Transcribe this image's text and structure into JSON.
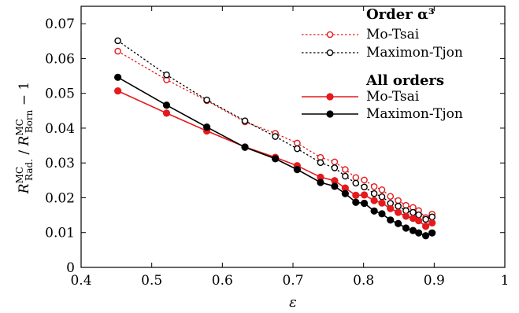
{
  "chart_data": {
    "type": "line",
    "title": "",
    "xlabel": "ε",
    "ylabel": "R^MC_Rad. / R^MC_Born − 1",
    "xlim": [
      0.4,
      1.0
    ],
    "ylim": [
      0,
      0.075
    ],
    "xticks": [
      "0.4",
      "0.5",
      "0.6",
      "0.7",
      "0.8",
      "0.9",
      "1"
    ],
    "yticks": [
      "0",
      "0.01",
      "0.02",
      "0.03",
      "0.04",
      "0.05",
      "0.06",
      "0.07"
    ],
    "grid": false,
    "legend_position": "top-right",
    "legend_groups": [
      "Order α³",
      "All orders"
    ],
    "x": [
      0.452,
      0.521,
      0.578,
      0.632,
      0.675,
      0.706,
      0.739,
      0.759,
      0.774,
      0.789,
      0.801,
      0.815,
      0.826,
      0.838,
      0.849,
      0.86,
      0.87,
      0.878,
      0.888,
      0.897
    ],
    "series": [
      {
        "name": "Mo-Tsai",
        "group": "Order α³",
        "color": "#e41a1c",
        "style": "dashed",
        "marker": "open-circle",
        "values": [
          0.0621,
          0.0539,
          0.0479,
          0.0418,
          0.0385,
          0.0357,
          0.0316,
          0.0303,
          0.0281,
          0.0258,
          0.0251,
          0.0232,
          0.0223,
          0.0204,
          0.0192,
          0.0178,
          0.0172,
          0.0163,
          0.0143,
          0.0153
        ]
      },
      {
        "name": "Maximon-Tjon",
        "group": "Order α³",
        "color": "#000000",
        "style": "dashed",
        "marker": "open-circle",
        "values": [
          0.0651,
          0.0553,
          0.0481,
          0.0421,
          0.0376,
          0.0341,
          0.0301,
          0.0286,
          0.0262,
          0.0242,
          0.0231,
          0.0212,
          0.0203,
          0.0184,
          0.0176,
          0.0163,
          0.0158,
          0.0151,
          0.0138,
          0.0145
        ]
      },
      {
        "name": "Mo-Tsai",
        "group": "All orders",
        "color": "#e41a1c",
        "style": "solid",
        "marker": "filled-circle",
        "values": [
          0.0507,
          0.0443,
          0.0392,
          0.0346,
          0.0316,
          0.0292,
          0.0259,
          0.0249,
          0.0228,
          0.0207,
          0.0208,
          0.0192,
          0.0185,
          0.0169,
          0.0158,
          0.0147,
          0.0141,
          0.0134,
          0.0118,
          0.0128
        ]
      },
      {
        "name": "Maximon-Tjon",
        "group": "All orders",
        "color": "#000000",
        "style": "solid",
        "marker": "filled-circle",
        "values": [
          0.0546,
          0.0466,
          0.0403,
          0.0345,
          0.0312,
          0.0281,
          0.0244,
          0.0233,
          0.0212,
          0.0187,
          0.0184,
          0.0162,
          0.0154,
          0.0136,
          0.0126,
          0.0113,
          0.0106,
          0.0099,
          0.0091,
          0.0099
        ]
      }
    ]
  }
}
